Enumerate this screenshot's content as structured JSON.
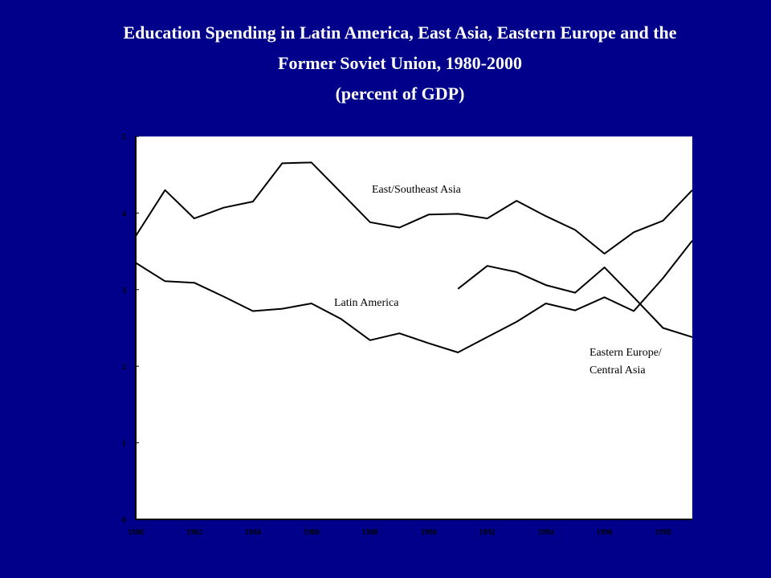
{
  "chart_data": {
    "type": "line",
    "title": [
      "Education Spending in Latin America, East Asia, Eastern Europe and the",
      "Former Soviet Union, 1980-2000"
    ],
    "subtitle": "(percent of GDP)",
    "xlabel": "",
    "ylabel": "",
    "xlim": [
      1980,
      1999
    ],
    "ylim": [
      0,
      5
    ],
    "y_ticks": [
      0,
      1,
      2,
      3,
      4,
      5
    ],
    "x_ticks": [
      1980,
      1982,
      1984,
      1986,
      1988,
      1990,
      1992,
      1994,
      1996,
      1998
    ],
    "grid": false,
    "background": "#ffffff",
    "page_background": "#00008b",
    "line_color": "#000000",
    "series": [
      {
        "name": "East/Southeast Asia",
        "x": [
          1980,
          1981,
          1982,
          1983,
          1984,
          1985,
          1986,
          1987,
          1988,
          1989,
          1990,
          1991,
          1992,
          1993,
          1994,
          1995,
          1996,
          1997,
          1998,
          1999
        ],
        "values": [
          3.7,
          4.3,
          3.93,
          4.07,
          4.15,
          4.65,
          4.66,
          4.27,
          3.88,
          3.81,
          3.98,
          3.99,
          3.93,
          4.16,
          3.96,
          3.78,
          3.47,
          3.75,
          3.9,
          4.3
        ]
      },
      {
        "name": "Latin America",
        "x": [
          1980,
          1981,
          1982,
          1983,
          1984,
          1985,
          1986,
          1987,
          1988,
          1989,
          1990,
          1991,
          1992,
          1993,
          1994,
          1995,
          1996,
          1997,
          1998,
          1999
        ],
        "values": [
          3.35,
          3.11,
          3.09,
          2.91,
          2.72,
          2.75,
          2.82,
          2.62,
          2.34,
          2.43,
          2.3,
          2.18,
          2.38,
          2.58,
          2.82,
          2.73,
          2.9,
          2.72,
          3.15,
          3.64
        ]
      },
      {
        "name": "Eastern Europe/ Central Asia",
        "x": [
          1991,
          1992,
          1993,
          1994,
          1995,
          1996,
          1997,
          1998,
          1999
        ],
        "values": [
          3.01,
          3.31,
          3.23,
          3.06,
          2.96,
          3.29,
          2.9,
          2.5,
          2.38
        ]
      }
    ],
    "annotations": [
      {
        "text": "East/Southeast Asia",
        "series": 0
      },
      {
        "text": "Latin America",
        "series": 1
      },
      {
        "lines": [
          "Eastern Europe/",
          "Central Asia"
        ],
        "series": 2
      }
    ]
  }
}
